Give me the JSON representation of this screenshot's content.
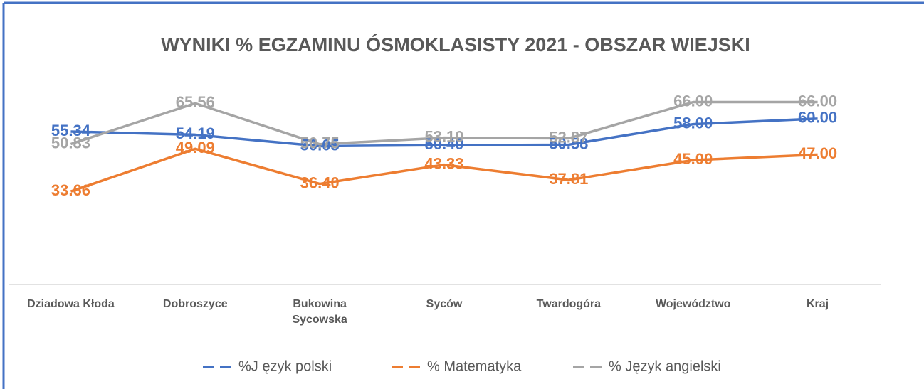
{
  "chart_data": {
    "type": "line",
    "title": "WYNIKI % EGZAMINU ÓSMOKLASISTY 2021 - OBSZAR WIEJSKI",
    "categories": [
      "Dziadowa Kłoda",
      "Dobroszyce",
      "Bukowina Sycowska",
      "Syców",
      "Twardogóra",
      "Województwo",
      "Kraj"
    ],
    "series": [
      {
        "name": "%J ęzyk polski",
        "color": "#4472c4",
        "values": [
          55.34,
          54.19,
          50.05,
          50.4,
          50.58,
          58.0,
          60.0
        ],
        "value_labels": [
          "55.34",
          "54.19",
          "50.05",
          "50.40",
          "50.58",
          "58.00",
          "60.00"
        ]
      },
      {
        "name": "% Matematyka",
        "color": "#ed7d31",
        "values": [
          33.66,
          49.09,
          36.4,
          43.33,
          37.81,
          45.0,
          47.0
        ],
        "value_labels": [
          "33.66",
          "49.09",
          "36.40",
          "43.33",
          "37.81",
          "45.00",
          "47.00"
        ]
      },
      {
        "name": "% Język angielski",
        "color": "#a5a5a5",
        "values": [
          50.83,
          65.56,
          50.75,
          53.1,
          52.87,
          66.0,
          66.0
        ],
        "value_labels": [
          "50.83",
          "65.56",
          "50.75",
          "53.10",
          "52.87",
          "66.00",
          "66.00"
        ]
      }
    ],
    "ylim": [
      0,
      70
    ],
    "legend": "bottom"
  }
}
